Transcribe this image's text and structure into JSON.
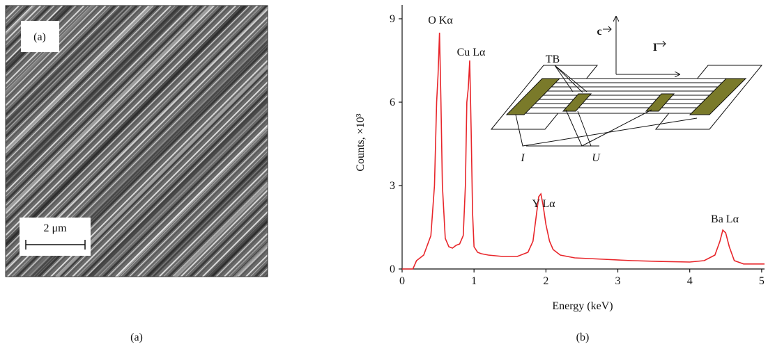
{
  "image_panel": {
    "label": "(a)",
    "scale_bar": "2 μm",
    "caption": "(a)"
  },
  "chart_data": {
    "type": "line",
    "caption": "(b)",
    "x_label": "Energy (keV)",
    "y_label": "Counts, ×10³",
    "xlim": [
      0,
      5.04
    ],
    "ylim": [
      0,
      9.5
    ],
    "xticks": [
      0,
      1,
      2,
      3,
      4,
      5
    ],
    "yticks": [
      0,
      3,
      6,
      9
    ],
    "x": [
      0,
      0.15,
      0.2,
      0.3,
      0.4,
      0.45,
      0.48,
      0.5,
      0.52,
      0.54,
      0.56,
      0.6,
      0.65,
      0.7,
      0.75,
      0.8,
      0.85,
      0.88,
      0.9,
      0.92,
      0.94,
      0.96,
      0.98,
      1.0,
      1.05,
      1.1,
      1.2,
      1.4,
      1.6,
      1.75,
      1.82,
      1.87,
      1.9,
      1.93,
      1.96,
      2.0,
      2.05,
      2.1,
      2.2,
      2.4,
      2.8,
      3.2,
      3.6,
      4.0,
      4.2,
      4.35,
      4.42,
      4.46,
      4.5,
      4.55,
      4.62,
      4.75,
      5.04
    ],
    "series": [
      {
        "color": "#e8262b",
        "values": [
          0,
          0,
          0.3,
          0.5,
          1.2,
          3.0,
          6.0,
          7.0,
          8.5,
          6.0,
          3.0,
          1.1,
          0.8,
          0.75,
          0.85,
          0.9,
          1.2,
          3.0,
          6.0,
          6.5,
          7.5,
          5.0,
          2.0,
          0.8,
          0.6,
          0.55,
          0.5,
          0.45,
          0.45,
          0.6,
          1.0,
          2.0,
          2.6,
          2.7,
          2.3,
          1.6,
          1.0,
          0.7,
          0.5,
          0.4,
          0.35,
          0.3,
          0.27,
          0.25,
          0.3,
          0.5,
          1.0,
          1.4,
          1.3,
          0.8,
          0.3,
          0.18,
          0.18
        ]
      }
    ],
    "annotations": [
      "O Kα",
      "Cu Lα",
      "Y Lα",
      "Ba Lα"
    ]
  },
  "inset": {
    "labels": [
      "TB",
      "c",
      "I",
      "I",
      "U"
    ]
  }
}
